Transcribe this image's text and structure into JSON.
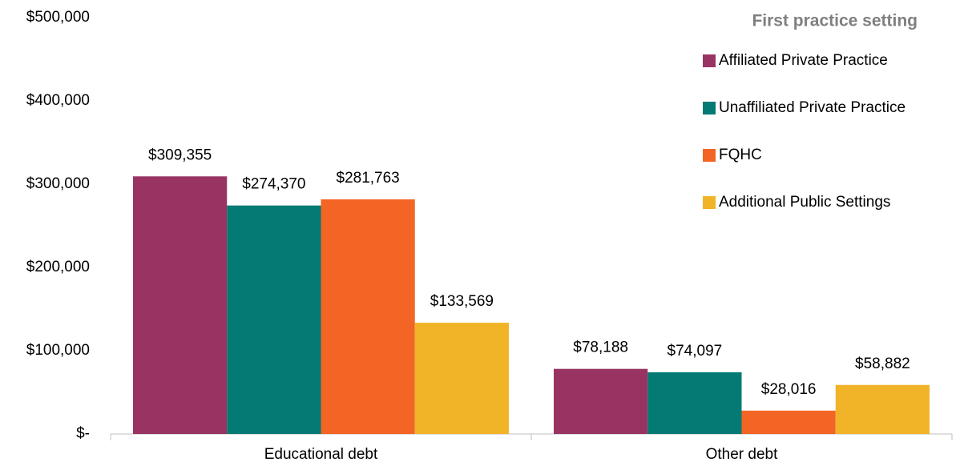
{
  "chart_data": {
    "type": "bar",
    "legend_title": "First practice setting",
    "categories": [
      "Educational debt",
      "Other debt"
    ],
    "series": [
      {
        "name": "Affiliated Private Practice",
        "color": "#993462",
        "values": [
          309355,
          78188
        ],
        "value_labels": [
          "$309,355",
          "$78,188"
        ]
      },
      {
        "name": "Unaffiliated Private Practice",
        "color": "#037a73",
        "values": [
          274370,
          74097
        ],
        "value_labels": [
          "$274,370",
          "$74,097"
        ]
      },
      {
        "name": "FQHC",
        "color": "#f26524",
        "values": [
          281763,
          28016
        ],
        "value_labels": [
          "$281,763",
          "$28,016"
        ]
      },
      {
        "name": "Additional Public Settings",
        "color": "#f1b327",
        "values": [
          133569,
          58882
        ],
        "value_labels": [
          "$133,569",
          "$58,882"
        ]
      }
    ],
    "ylim": [
      0,
      500000
    ],
    "yticks": [
      {
        "value": 0,
        "label": "$-"
      },
      {
        "value": 100000,
        "label": "$100,000"
      },
      {
        "value": 200000,
        "label": "$200,000"
      },
      {
        "value": 300000,
        "label": "$300,000"
      },
      {
        "value": 400000,
        "label": "$400,000"
      },
      {
        "value": 500000,
        "label": "$500,000"
      }
    ],
    "grid": false,
    "legend": "top-right"
  }
}
